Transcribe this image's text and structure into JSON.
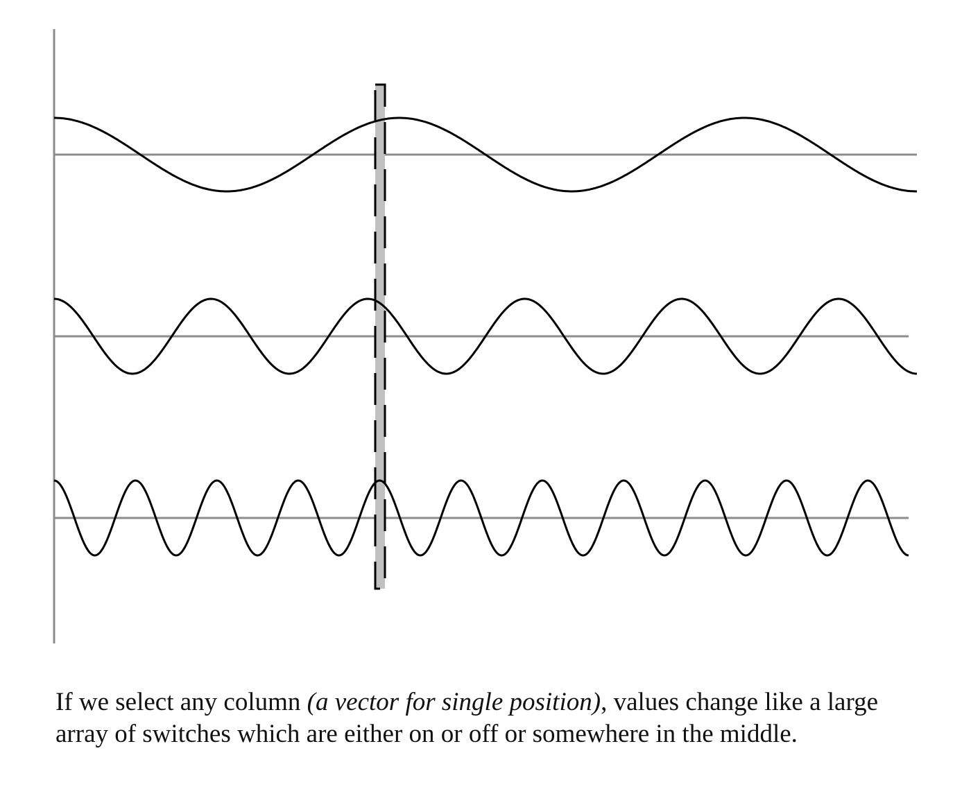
{
  "diagram": {
    "colors": {
      "axis": "#8c8c8c",
      "wave": "#000000",
      "highlight": "#c0c0c0",
      "dash": "#000000"
    },
    "waves": [
      {
        "name": "low-frequency-wave",
        "cycles_across": 2.5
      },
      {
        "name": "medium-frequency-wave",
        "cycles_across": 5.5
      },
      {
        "name": "high-frequency-wave",
        "cycles_across": 10.5
      }
    ]
  },
  "caption": {
    "part1": "If we select any column ",
    "italic": "(a vector for single position)",
    "part2": ", values change like a large array of switches which are either on or off or somewhere in the middle."
  }
}
